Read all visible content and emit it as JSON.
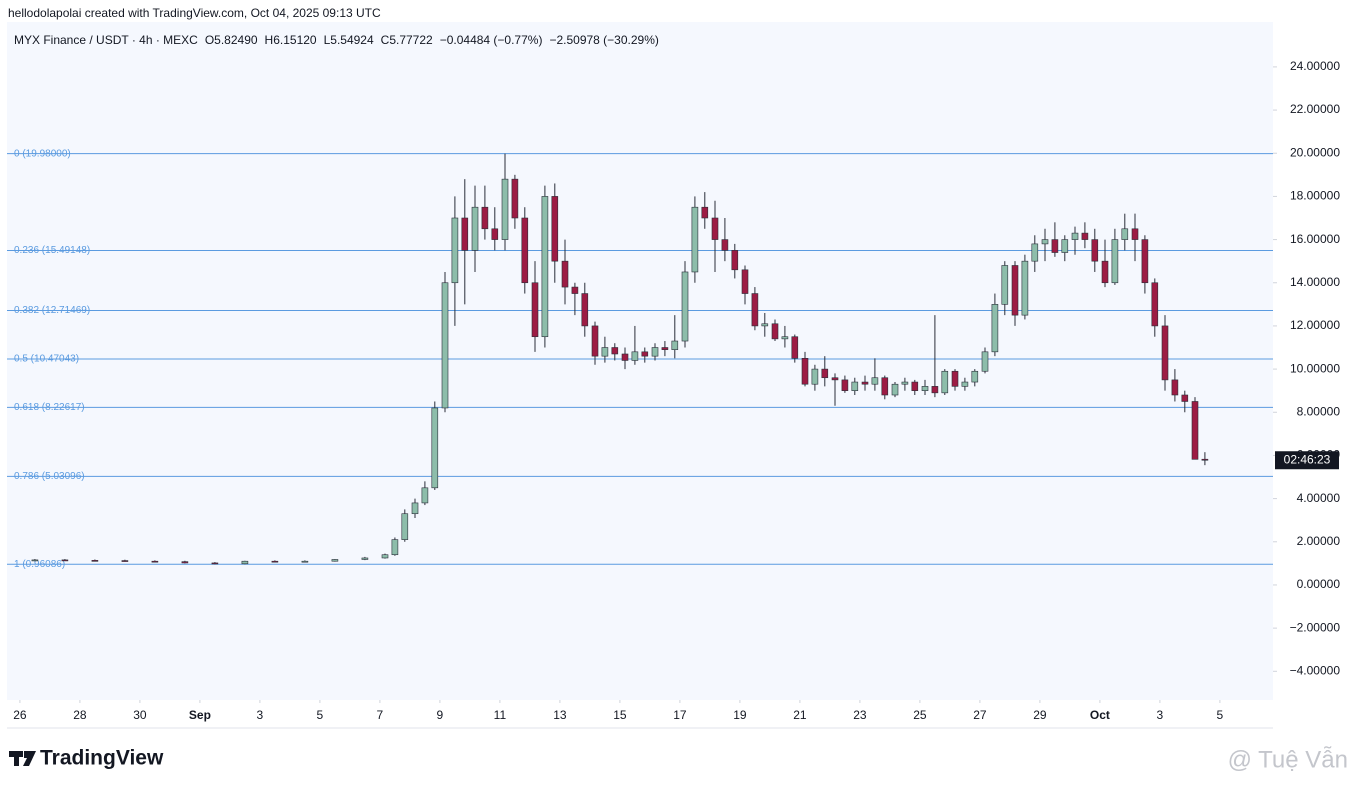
{
  "header": "hellodolapolai created with TradingView.com, Oct 04, 2025 09:13 UTC",
  "logo": "TradingView",
  "watermark": "@ Tuệ Vẫn",
  "chart_data": {
    "type": "candlestick",
    "title": "MYX Finance / USDT · 4h · MEXC",
    "legend_values": [
      "O5.82490",
      "H6.15120",
      "L5.54924",
      "C5.77722",
      "−0.04484 (−0.77%)",
      "−2.50978 (−30.29%)"
    ],
    "countdown": "02:46:23",
    "up_color": "#8dbdaa",
    "down_color": "#9c1c44",
    "fib_color": "#5b9be0",
    "xlim": [
      -0.43,
      41.77
    ],
    "xticks": [
      {
        "value": 0,
        "label": "26"
      },
      {
        "value": 2,
        "label": "28"
      },
      {
        "value": 4,
        "label": "30"
      },
      {
        "value": 6,
        "label": "Sep"
      },
      {
        "value": 8,
        "label": "3"
      },
      {
        "value": 10,
        "label": "5"
      },
      {
        "value": 12,
        "label": "7"
      },
      {
        "value": 14,
        "label": "9"
      },
      {
        "value": 16,
        "label": "11"
      },
      {
        "value": 18,
        "label": "13"
      },
      {
        "value": 20,
        "label": "15"
      },
      {
        "value": 22,
        "label": "17"
      },
      {
        "value": 24,
        "label": "19"
      },
      {
        "value": 26,
        "label": "21"
      },
      {
        "value": 28,
        "label": "23"
      },
      {
        "value": 30,
        "label": "25"
      },
      {
        "value": 32,
        "label": "27"
      },
      {
        "value": 34,
        "label": "29"
      },
      {
        "value": 36,
        "label": "Oct"
      },
      {
        "value": 38,
        "label": "3"
      },
      {
        "value": 40,
        "label": "5"
      }
    ],
    "ylim": [
      -5.33,
      26.08
    ],
    "yticks": [
      {
        "value": -4,
        "label": "−4.00000"
      },
      {
        "value": -2,
        "label": "−2.00000"
      },
      {
        "value": 0,
        "label": "0.00000"
      },
      {
        "value": 2,
        "label": "2.00000"
      },
      {
        "value": 4,
        "label": "4.00000"
      },
      {
        "value": 6,
        "label": "6.00000"
      },
      {
        "value": 8,
        "label": "8.00000"
      },
      {
        "value": 10,
        "label": "10.00000"
      },
      {
        "value": 12,
        "label": "12.00000"
      },
      {
        "value": 14,
        "label": "14.00000"
      },
      {
        "value": 16,
        "label": "16.00000"
      },
      {
        "value": 18,
        "label": "18.00000"
      },
      {
        "value": 20,
        "label": "20.00000"
      },
      {
        "value": 22,
        "label": "22.00000"
      },
      {
        "value": 24,
        "label": "24.00000"
      }
    ],
    "fib_levels": [
      {
        "value": 19.98,
        "label": "0 (19.98000)"
      },
      {
        "value": 15.49148,
        "label": "0.236 (15.49148)"
      },
      {
        "value": 12.71469,
        "label": "0.382 (12.71469)"
      },
      {
        "value": 10.47043,
        "label": "0.5 (10.47043)"
      },
      {
        "value": 8.22617,
        "label": "0.618 (8.22617)"
      },
      {
        "value": 5.03096,
        "label": "0.786 (5.03096)"
      },
      {
        "value": 0.96086,
        "label": "1 (0.96086)"
      }
    ],
    "x": [
      0.5,
      1.5,
      2.5,
      3.5,
      4.5,
      5.5,
      6.5,
      7.5,
      8.5,
      9.5,
      10.5,
      11.5,
      12.17,
      12.5,
      12.83,
      13.17,
      13.5,
      13.83,
      14.17,
      14.5,
      14.83,
      15.17,
      15.5,
      15.83,
      16.17,
      16.5,
      16.83,
      17.17,
      17.5,
      17.83,
      18.17,
      18.5,
      18.83,
      19.17,
      19.5,
      19.83,
      20.17,
      20.5,
      20.83,
      21.17,
      21.5,
      21.83,
      22.17,
      22.5,
      22.83,
      23.17,
      23.5,
      23.83,
      24.17,
      24.5,
      24.83,
      25.17,
      25.5,
      25.83,
      26.17,
      26.5,
      26.83,
      27.17,
      27.5,
      27.83,
      28.17,
      28.5,
      28.83,
      29.17,
      29.5,
      29.83,
      30.17,
      30.5,
      30.83,
      31.17,
      31.5,
      31.83,
      32.17,
      32.5,
      32.83,
      33.17,
      33.5,
      33.83,
      34.17,
      34.5,
      34.83,
      35.17,
      35.5,
      35.83,
      36.17,
      36.5,
      36.83,
      37.17,
      37.5,
      37.83,
      38.17,
      38.5,
      38.83,
      39.17,
      39.5
    ],
    "ohlc": [
      [
        1.15,
        1.2,
        1.1,
        1.16
      ],
      [
        1.16,
        1.2,
        1.12,
        1.14
      ],
      [
        1.14,
        1.18,
        1.1,
        1.13
      ],
      [
        1.13,
        1.17,
        1.08,
        1.1
      ],
      [
        1.1,
        1.14,
        1.05,
        1.08
      ],
      [
        1.08,
        1.12,
        1.0,
        1.02
      ],
      [
        1.02,
        1.06,
        0.96,
        0.98
      ],
      [
        0.98,
        1.12,
        0.96,
        1.1
      ],
      [
        1.1,
        1.14,
        1.04,
        1.08
      ],
      [
        1.08,
        1.14,
        1.05,
        1.1
      ],
      [
        1.1,
        1.2,
        1.08,
        1.18
      ],
      [
        1.18,
        1.3,
        1.15,
        1.25
      ],
      [
        1.25,
        1.45,
        1.22,
        1.4
      ],
      [
        1.4,
        2.2,
        1.35,
        2.1
      ],
      [
        2.1,
        3.5,
        2.0,
        3.3
      ],
      [
        3.3,
        4.0,
        3.1,
        3.8
      ],
      [
        3.8,
        4.8,
        3.7,
        4.5
      ],
      [
        4.5,
        8.5,
        4.4,
        8.2
      ],
      [
        8.2,
        14.5,
        8.0,
        14.0
      ],
      [
        14.0,
        18.0,
        12.0,
        17.0
      ],
      [
        17.0,
        18.8,
        13.0,
        15.5
      ],
      [
        15.5,
        18.5,
        14.5,
        17.5
      ],
      [
        17.5,
        18.5,
        16.0,
        16.5
      ],
      [
        16.5,
        17.5,
        15.5,
        16.0
      ],
      [
        16.0,
        19.98,
        15.5,
        18.8
      ],
      [
        18.8,
        19.0,
        16.5,
        17.0
      ],
      [
        17.0,
        17.5,
        13.5,
        14.0
      ],
      [
        14.0,
        15.0,
        10.8,
        11.5
      ],
      [
        11.5,
        18.5,
        11.0,
        18.0
      ],
      [
        18.0,
        18.6,
        14.0,
        15.0
      ],
      [
        15.0,
        16.0,
        13.0,
        13.8
      ],
      [
        13.8,
        14.0,
        12.5,
        13.5
      ],
      [
        13.5,
        14.0,
        11.5,
        12.0
      ],
      [
        12.0,
        12.2,
        10.2,
        10.6
      ],
      [
        10.6,
        11.5,
        10.3,
        11.0
      ],
      [
        11.0,
        11.2,
        10.4,
        10.7
      ],
      [
        10.7,
        11.0,
        10.0,
        10.4
      ],
      [
        10.4,
        12.0,
        10.2,
        10.8
      ],
      [
        10.8,
        11.0,
        10.3,
        10.6
      ],
      [
        10.6,
        11.2,
        10.4,
        11.0
      ],
      [
        11.0,
        11.3,
        10.6,
        10.9
      ],
      [
        10.9,
        12.5,
        10.5,
        11.3
      ],
      [
        11.3,
        15.0,
        11.0,
        14.5
      ],
      [
        14.5,
        18.0,
        14.0,
        17.5
      ],
      [
        17.5,
        18.2,
        16.5,
        17.0
      ],
      [
        17.0,
        17.8,
        14.5,
        16.0
      ],
      [
        16.0,
        17.0,
        15.0,
        15.5
      ],
      [
        15.5,
        15.8,
        14.2,
        14.6
      ],
      [
        14.6,
        14.8,
        13.0,
        13.5
      ],
      [
        13.5,
        13.8,
        11.8,
        12.0
      ],
      [
        12.0,
        12.6,
        11.5,
        12.1
      ],
      [
        12.1,
        12.3,
        11.3,
        11.4
      ],
      [
        11.4,
        12.0,
        11.0,
        11.5
      ],
      [
        11.5,
        11.6,
        10.3,
        10.5
      ],
      [
        10.5,
        10.8,
        9.2,
        9.3
      ],
      [
        9.3,
        10.2,
        9.0,
        10.0
      ],
      [
        10.0,
        10.6,
        9.2,
        9.6
      ],
      [
        9.6,
        9.8,
        8.3,
        9.5
      ],
      [
        9.5,
        9.7,
        8.9,
        9.0
      ],
      [
        9.0,
        9.6,
        8.8,
        9.4
      ],
      [
        9.4,
        9.7,
        9.0,
        9.3
      ],
      [
        9.3,
        10.5,
        9.0,
        9.6
      ],
      [
        9.6,
        9.7,
        8.6,
        8.8
      ],
      [
        8.8,
        9.4,
        8.7,
        9.3
      ],
      [
        9.3,
        9.6,
        9.0,
        9.4
      ],
      [
        9.4,
        9.5,
        8.8,
        9.0
      ],
      [
        9.0,
        9.5,
        8.8,
        9.2
      ],
      [
        9.2,
        12.5,
        8.7,
        8.9
      ],
      [
        8.9,
        10.0,
        8.8,
        9.9
      ],
      [
        9.9,
        10.0,
        9.0,
        9.2
      ],
      [
        9.2,
        9.6,
        9.0,
        9.4
      ],
      [
        9.4,
        10.0,
        9.2,
        9.9
      ],
      [
        9.9,
        11.0,
        9.8,
        10.8
      ],
      [
        10.8,
        13.5,
        10.6,
        13.0
      ],
      [
        13.0,
        15.0,
        12.5,
        14.8
      ],
      [
        14.8,
        15.0,
        12.0,
        12.5
      ],
      [
        12.5,
        15.3,
        12.3,
        15.0
      ],
      [
        15.0,
        16.2,
        14.5,
        15.8
      ],
      [
        15.8,
        16.5,
        15.0,
        16.0
      ],
      [
        16.0,
        16.8,
        15.2,
        15.4
      ],
      [
        15.4,
        16.2,
        15.0,
        16.0
      ],
      [
        16.0,
        16.6,
        15.3,
        16.3
      ],
      [
        16.3,
        16.8,
        15.6,
        16.0
      ],
      [
        16.0,
        16.5,
        14.5,
        15.0
      ],
      [
        15.0,
        16.0,
        13.8,
        14.0
      ],
      [
        14.0,
        16.5,
        13.9,
        16.0
      ],
      [
        16.0,
        17.2,
        15.5,
        16.5
      ],
      [
        16.5,
        17.2,
        15.0,
        16.0
      ],
      [
        16.0,
        16.2,
        13.5,
        14.0
      ],
      [
        14.0,
        14.2,
        11.5,
        12.0
      ],
      [
        12.0,
        12.5,
        9.0,
        9.5
      ],
      [
        9.5,
        10.0,
        8.5,
        8.8
      ],
      [
        8.8,
        9.0,
        8.0,
        8.5
      ],
      [
        8.5,
        8.7,
        6.0,
        5.82
      ],
      [
        5.8249,
        6.1512,
        5.54924,
        5.77722
      ]
    ]
  }
}
